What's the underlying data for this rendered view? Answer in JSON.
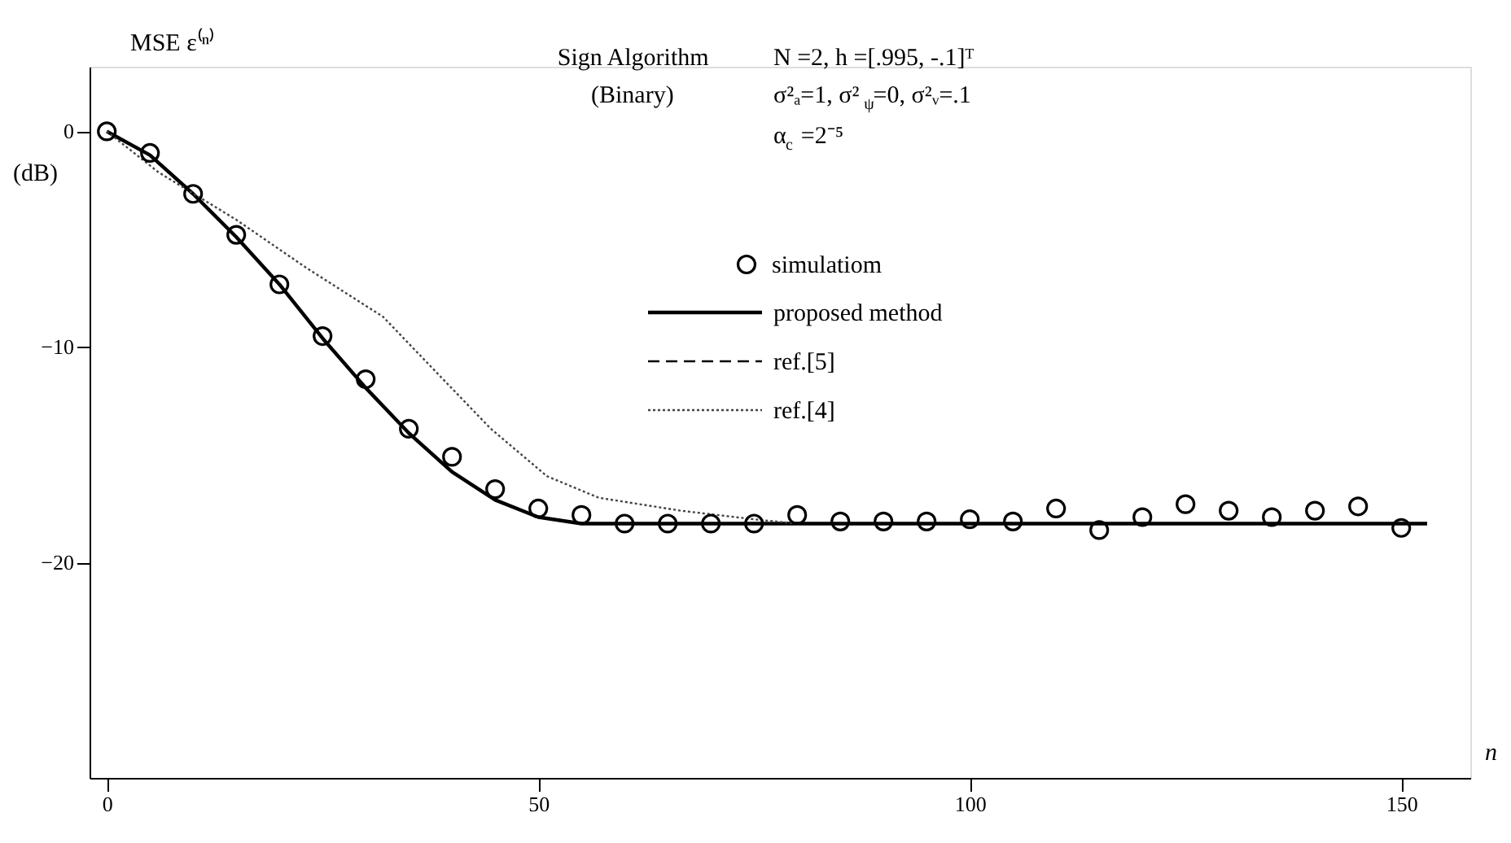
{
  "chart_data": {
    "type": "line",
    "ylabel": "MSE ε⁽ⁿ⁾",
    "xlabel": "n",
    "annotations": [
      "Sign Algorithm",
      "(Binary)",
      "N =2,   h =[.995, -.1]ᵀ",
      "σ²ₐ=1,  σ²$_{ψ}$=0,   σ²ᵥ=.1",
      "α$_{c}$ =2⁻⁵",
      "(dB)"
    ],
    "xlim": [
      -2,
      158
    ],
    "xticks": [
      0,
      50,
      100,
      150
    ],
    "ylim": [
      -30,
      3
    ],
    "yticks": [
      0,
      -10,
      -20
    ],
    "grid": false,
    "legend": "top right",
    "series": [
      {
        "name": "simulatiom",
        "type": "scatter",
        "marker": "circle",
        "color": "#000000",
        "x": [
          0,
          5,
          10,
          15,
          20,
          25,
          30,
          35,
          40,
          45,
          50,
          55,
          60,
          65,
          70,
          75,
          80,
          85,
          90,
          95,
          100,
          105,
          110,
          115,
          120,
          125,
          130,
          135,
          140,
          145,
          150
        ],
        "values": [
          0,
          -1.0,
          -2.9,
          -4.8,
          -7.1,
          -9.5,
          -11.5,
          -13.8,
          -15.1,
          -16.6,
          -17.5,
          -17.8,
          -18.2,
          -18.2,
          -18.2,
          -18.2,
          -17.8,
          -18.1,
          -18.1,
          -18.1,
          -18.0,
          -18.1,
          -17.5,
          -18.5,
          -17.9,
          -17.3,
          -17.6,
          -17.9,
          -17.6,
          -17.4,
          -18.4
        ]
      },
      {
        "name": "proposed method",
        "line_style": "solid",
        "color": "#000000",
        "x": [
          0,
          5,
          10,
          15,
          20,
          25,
          30,
          35,
          40,
          45,
          50,
          55,
          60,
          153
        ],
        "values": [
          0,
          -1.1,
          -2.9,
          -4.9,
          -7.1,
          -9.6,
          -11.9,
          -14.0,
          -15.8,
          -17.1,
          -17.9,
          -18.2,
          -18.2,
          -18.2
        ]
      },
      {
        "name": "ref.[5]",
        "line_style": "dashed",
        "color": "#000000"
      },
      {
        "name": "ref.[4]",
        "line_style": "dotted",
        "color": "#444444",
        "x": [
          0,
          6,
          15,
          23,
          32,
          38,
          44.5,
          51,
          57,
          66.5,
          75,
          80
        ],
        "values": [
          0,
          -1.9,
          -4.1,
          -6.3,
          -8.6,
          -11.1,
          -13.8,
          -16.0,
          -17.0,
          -17.6,
          -18.0,
          -18.2
        ]
      }
    ]
  }
}
